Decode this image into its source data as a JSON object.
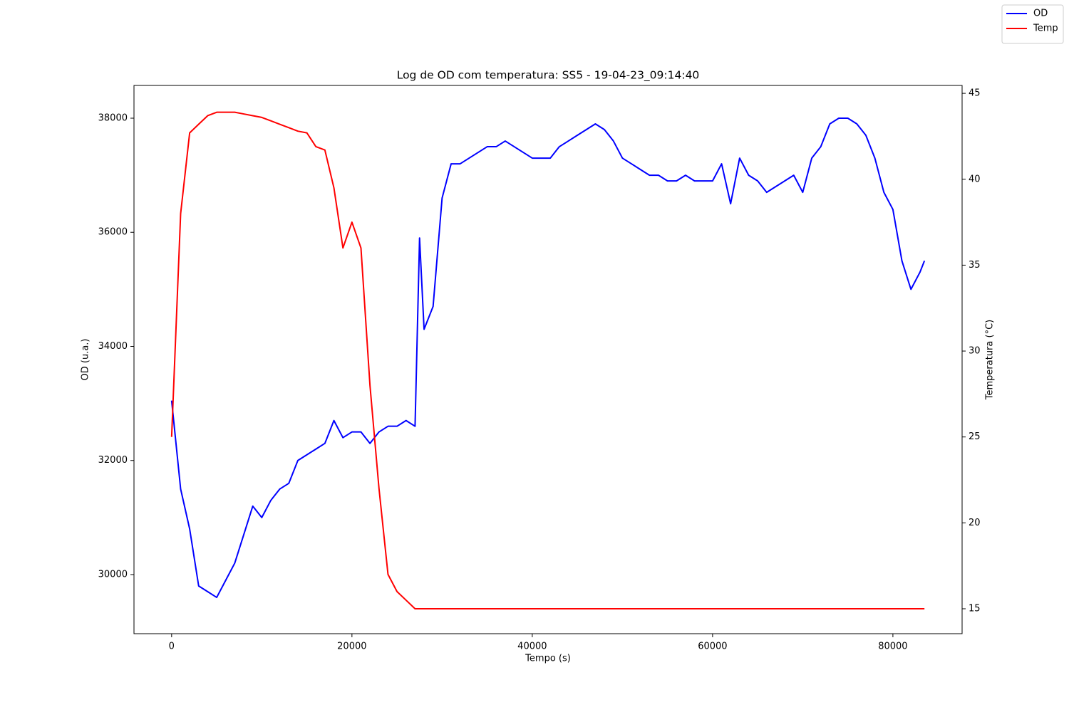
{
  "chart_data": {
    "type": "line",
    "title": "Log de OD com temperatura: SS5 - 19-04-23_09:14:40",
    "x_label": "Tempo (s)",
    "y_label": "OD (u.a.)",
    "y2_label": "Temperatura (°C)",
    "x": [
      0,
      1000,
      2000,
      3000,
      4000,
      5000,
      6000,
      7000,
      8000,
      9000,
      10000,
      11000,
      12000,
      13000,
      14000,
      15000,
      16000,
      17000,
      18000,
      19000,
      20000,
      21000,
      22000,
      23000,
      24000,
      25000,
      26000,
      27000,
      27500,
      28000,
      29000,
      30000,
      31000,
      32000,
      33000,
      34000,
      35000,
      36000,
      37000,
      38000,
      39000,
      40000,
      41000,
      42000,
      43000,
      44000,
      45000,
      46000,
      47000,
      48000,
      49000,
      50000,
      51000,
      52000,
      53000,
      54000,
      55000,
      56000,
      57000,
      58000,
      59000,
      60000,
      61000,
      62000,
      63000,
      64000,
      65000,
      66000,
      67000,
      68000,
      69000,
      70000,
      71000,
      72000,
      73000,
      74000,
      75000,
      76000,
      77000,
      78000,
      79000,
      80000,
      81000,
      82000,
      83000,
      83500
    ],
    "series": [
      {
        "name": "OD",
        "color": "#0000ff",
        "axis": "y",
        "values": [
          33050,
          31500,
          30800,
          29800,
          29700,
          29600,
          29900,
          30200,
          30700,
          31200,
          31000,
          31300,
          31500,
          31600,
          32000,
          32100,
          32200,
          32300,
          32700,
          32400,
          32500,
          32500,
          32300,
          32500,
          32600,
          32600,
          32700,
          32600,
          35900,
          34300,
          34700,
          36600,
          37200,
          37200,
          37300,
          37400,
          37500,
          37500,
          37600,
          37500,
          37400,
          37300,
          37300,
          37300,
          37500,
          37600,
          37700,
          37800,
          37900,
          37800,
          37600,
          37300,
          37200,
          37100,
          37000,
          37000,
          36900,
          36900,
          37000,
          36900,
          36900,
          36900,
          37200,
          36500,
          37300,
          37000,
          36900,
          36700,
          36800,
          36900,
          37000,
          36700,
          37300,
          37500,
          37900,
          38000,
          38000,
          37900,
          37700,
          37300,
          36700,
          36400,
          35500,
          35000,
          35300,
          35500
        ]
      },
      {
        "name": "Temp",
        "color": "#ff0000",
        "axis": "y2",
        "values": [
          25,
          38,
          42.7,
          43.2,
          43.7,
          43.9,
          43.9,
          43.9,
          43.8,
          43.7,
          43.6,
          43.4,
          43.2,
          43.0,
          42.8,
          42.7,
          41.9,
          41.7,
          39.5,
          36,
          37.5,
          36,
          28,
          22,
          17,
          16,
          15.5,
          15,
          15,
          15,
          15,
          15,
          15,
          15,
          15,
          15,
          15,
          15,
          15,
          15,
          15,
          15,
          15,
          15,
          15,
          15,
          15,
          15,
          15,
          15,
          15,
          15,
          15,
          15,
          15,
          15,
          15,
          15,
          15,
          15,
          15,
          15,
          15,
          15,
          15,
          15,
          15,
          15,
          15,
          15,
          15,
          15,
          15,
          15,
          15,
          15,
          15,
          15,
          15,
          15,
          15,
          15,
          15,
          15,
          15,
          15
        ]
      }
    ],
    "xlim": [
      -4175,
      87675
    ],
    "xticks": [
      0,
      20000,
      40000,
      60000,
      80000
    ],
    "ylim": [
      28964,
      38574
    ],
    "yticks": [
      30000,
      32000,
      34000,
      36000,
      38000
    ],
    "y2lim": [
      13.55,
      45.46
    ],
    "y2ticks": [
      15,
      20,
      25,
      30,
      35,
      40,
      45
    ],
    "grid": false,
    "legend": "upper-right"
  }
}
